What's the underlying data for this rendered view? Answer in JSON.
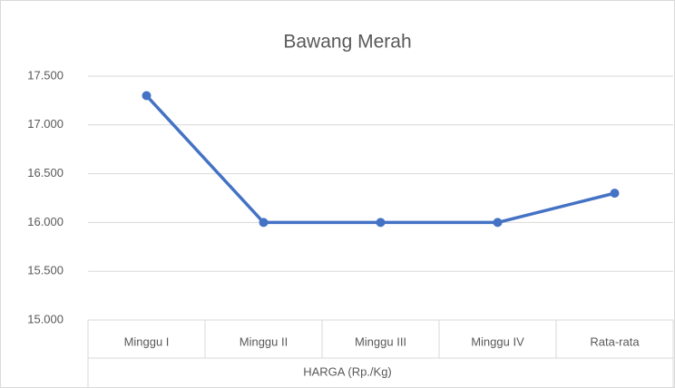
{
  "chart_data": {
    "type": "line",
    "title": "Bawang Merah",
    "x_label": "HARGA (Rp./Kg)",
    "categories": [
      "Minggu I",
      "Minggu II",
      "Minggu III",
      "Minggu IV",
      "Rata-rata"
    ],
    "series": [
      {
        "name": "HARGA (Rp./Kg)",
        "color": "#4472c4",
        "values": [
          17300,
          16000,
          16000,
          16000,
          16300
        ]
      }
    ],
    "ylim": [
      15000,
      17500
    ],
    "yticks": [
      {
        "value": 15000,
        "label": "15.000"
      },
      {
        "value": 15500,
        "label": "15.500"
      },
      {
        "value": 16000,
        "label": "16.000"
      },
      {
        "value": 16500,
        "label": "16.500"
      },
      {
        "value": 17000,
        "label": "17.000"
      },
      {
        "value": 17500,
        "label": "17.500"
      }
    ],
    "grid": true
  }
}
